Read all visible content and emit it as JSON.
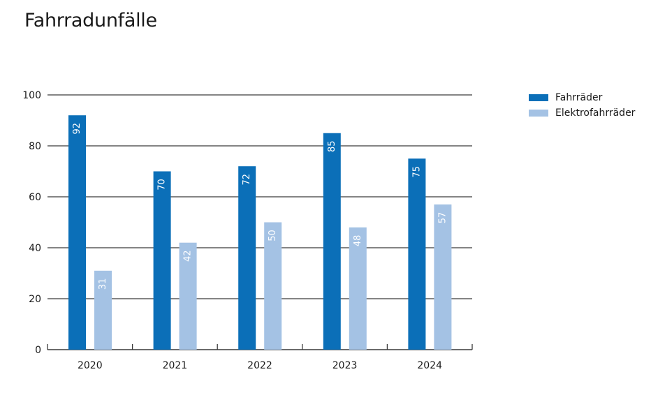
{
  "chart_data": {
    "type": "bar",
    "title": "Fahrradunfälle",
    "categories": [
      "2020",
      "2021",
      "2022",
      "2023",
      "2024"
    ],
    "series": [
      {
        "name": "Fahrräder",
        "values": [
          92,
          70,
          72,
          85,
          75
        ],
        "color": "#0b6fb8"
      },
      {
        "name": "Elektrofahrräder",
        "values": [
          31,
          42,
          50,
          48,
          57
        ],
        "color": "#a4c2e4"
      }
    ],
    "xlabel": "",
    "ylabel": "",
    "ylim": [
      0,
      100
    ],
    "yticks": [
      0,
      20,
      40,
      60,
      80,
      100
    ],
    "grid": true,
    "legend_position": "top-right",
    "data_labels": true
  }
}
